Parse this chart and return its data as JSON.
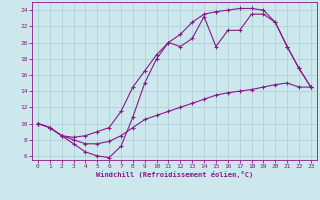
{
  "xlabel": "Windchill (Refroidissement éolien,°C)",
  "background_color": "#cce8ec",
  "grid_color": "#aacdd4",
  "line_color": "#881888",
  "xlim": [
    -0.5,
    23.5
  ],
  "ylim": [
    5.5,
    25
  ],
  "xticks": [
    0,
    1,
    2,
    3,
    4,
    5,
    6,
    7,
    8,
    9,
    10,
    11,
    12,
    13,
    14,
    15,
    16,
    17,
    18,
    19,
    20,
    21,
    22,
    23
  ],
  "yticks": [
    6,
    8,
    10,
    12,
    14,
    16,
    18,
    20,
    22,
    24
  ],
  "line1_x": [
    0,
    1,
    2,
    3,
    4,
    5,
    6,
    7,
    8,
    9,
    10,
    11,
    12,
    13,
    14,
    15,
    16,
    17,
    18,
    19,
    20,
    21,
    22,
    23
  ],
  "line1_y": [
    10,
    9.5,
    8.5,
    7.5,
    6.5,
    6.0,
    5.8,
    7.2,
    10.8,
    15.0,
    18.0,
    20.0,
    19.5,
    20.5,
    23.2,
    19.5,
    21.5,
    21.5,
    23.5,
    23.5,
    22.5,
    19.5,
    16.8,
    14.5
  ],
  "line2_x": [
    0,
    1,
    2,
    3,
    4,
    5,
    6,
    7,
    8,
    9,
    10,
    11,
    12,
    13,
    14,
    15,
    16,
    17,
    18,
    19,
    20,
    21,
    22,
    23
  ],
  "line2_y": [
    10,
    9.5,
    8.5,
    8.3,
    8.5,
    9.0,
    9.5,
    11.5,
    14.5,
    16.5,
    18.5,
    20.0,
    21.0,
    22.5,
    23.5,
    23.8,
    24.0,
    24.2,
    24.2,
    24.0,
    22.5,
    19.5,
    16.8,
    14.5
  ],
  "line3_x": [
    0,
    1,
    2,
    3,
    4,
    5,
    6,
    7,
    8,
    9,
    10,
    11,
    12,
    13,
    14,
    15,
    16,
    17,
    18,
    19,
    20,
    21,
    22,
    23
  ],
  "line3_y": [
    10,
    9.5,
    8.5,
    8.0,
    7.5,
    7.5,
    7.8,
    8.5,
    9.5,
    10.5,
    11.0,
    11.5,
    12.0,
    12.5,
    13.0,
    13.5,
    13.8,
    14.0,
    14.2,
    14.5,
    14.8,
    15.0,
    14.5,
    14.5
  ]
}
